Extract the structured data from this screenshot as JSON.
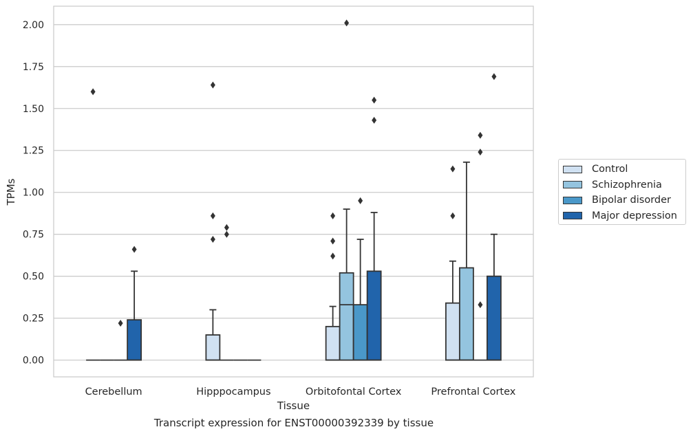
{
  "caption": "Transcript expression for ENST00000392339 by tissue",
  "chart_data": {
    "type": "box",
    "xlabel": "Tissue",
    "ylabel": "TPMs",
    "ylim": [
      -0.1,
      2.11
    ],
    "yticks": [
      "0.00",
      "0.25",
      "0.50",
      "0.75",
      "1.00",
      "1.25",
      "1.50",
      "1.75",
      "2.00"
    ],
    "grid": "horizontal",
    "legend_placement": "right, outside",
    "categories": [
      "Cerebellum",
      "Hipppocampus",
      "Orbitofontal Cortex",
      "Prefrontal Cortex"
    ],
    "series": [
      {
        "name": "Control",
        "color": "#d0e1f2",
        "boxes": [
          {
            "q1": 0,
            "median": 0,
            "q3": 0,
            "whisker_low": 0,
            "whisker_high": 0,
            "outliers": [
              1.6
            ]
          },
          {
            "q1": 0,
            "median": 0,
            "q3": 0.15,
            "whisker_low": 0,
            "whisker_high": 0.3,
            "outliers": [
              0.72,
              0.86,
              1.64
            ]
          },
          {
            "q1": 0,
            "median": 0,
            "q3": 0.2,
            "whisker_low": 0,
            "whisker_high": 0.32,
            "outliers": [
              0.62,
              0.71,
              0.86
            ]
          },
          {
            "q1": 0,
            "median": 0,
            "q3": 0.34,
            "whisker_low": 0,
            "whisker_high": 0.59,
            "outliers": [
              0.86,
              1.14
            ]
          }
        ]
      },
      {
        "name": "Schizophrenia",
        "color": "#94c4df",
        "boxes": [
          {
            "q1": 0,
            "median": 0,
            "q3": 0,
            "whisker_low": 0,
            "whisker_high": 0,
            "outliers": []
          },
          {
            "q1": 0,
            "median": 0,
            "q3": 0,
            "whisker_low": 0,
            "whisker_high": 0,
            "outliers": [
              0.75,
              0.79
            ]
          },
          {
            "q1": 0,
            "median": 0.33,
            "q3": 0.52,
            "whisker_low": 0,
            "whisker_high": 0.9,
            "outliers": [
              2.01
            ]
          },
          {
            "q1": 0,
            "median": 0,
            "q3": 0.55,
            "whisker_low": 0,
            "whisker_high": 1.18,
            "outliers": []
          }
        ]
      },
      {
        "name": "Bipolar disorder",
        "color": "#4a98c9",
        "boxes": [
          {
            "q1": 0,
            "median": 0,
            "q3": 0,
            "whisker_low": 0,
            "whisker_high": 0,
            "outliers": [
              0.22
            ]
          },
          {
            "q1": 0,
            "median": 0,
            "q3": 0,
            "whisker_low": 0,
            "whisker_high": 0,
            "outliers": []
          },
          {
            "q1": 0,
            "median": 0,
            "q3": 0.33,
            "whisker_low": 0,
            "whisker_high": 0.72,
            "outliers": [
              0.95
            ]
          },
          {
            "q1": 0,
            "median": 0,
            "q3": 0,
            "whisker_low": 0,
            "whisker_high": 0,
            "outliers": [
              0.33,
              1.24,
              1.34
            ]
          }
        ]
      },
      {
        "name": "Major depression",
        "color": "#2164ab",
        "boxes": [
          {
            "q1": 0,
            "median": 0,
            "q3": 0.24,
            "whisker_low": 0,
            "whisker_high": 0.53,
            "outliers": [
              0.66
            ]
          },
          {
            "q1": 0,
            "median": 0,
            "q3": 0,
            "whisker_low": 0,
            "whisker_high": 0,
            "outliers": []
          },
          {
            "q1": 0,
            "median": 0,
            "q3": 0.53,
            "whisker_low": 0,
            "whisker_high": 0.88,
            "outliers": [
              1.43,
              1.55
            ]
          },
          {
            "q1": 0,
            "median": 0,
            "q3": 0.5,
            "whisker_low": 0,
            "whisker_high": 0.75,
            "outliers": [
              1.69
            ]
          }
        ]
      }
    ]
  }
}
